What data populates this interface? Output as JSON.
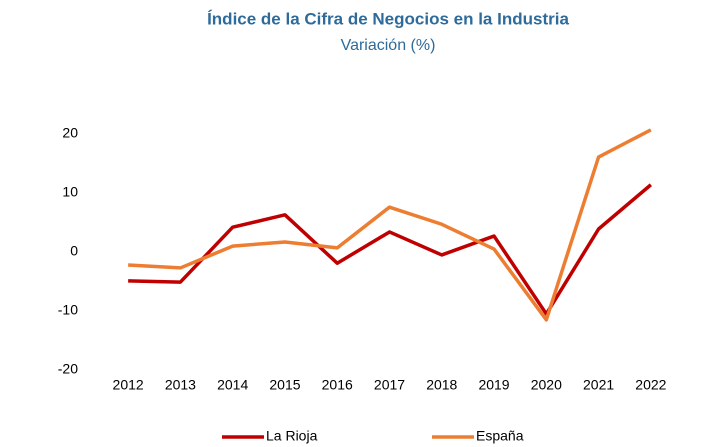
{
  "chart_data": {
    "type": "line",
    "title": "Índice de la Cifra de Negocios en la Industria",
    "subtitle": "Variación (%)",
    "categories": [
      "2012",
      "2013",
      "2014",
      "2015",
      "2016",
      "2017",
      "2018",
      "2019",
      "2020",
      "2021",
      "2022"
    ],
    "series": [
      {
        "name": "La Rioja",
        "color": "#c00000",
        "values": [
          -4.9,
          -5.1,
          4.2,
          6.3,
          -1.9,
          3.4,
          -0.5,
          2.7,
          -10.5,
          3.9,
          11.4
        ]
      },
      {
        "name": "España",
        "color": "#ed7d31",
        "values": [
          -2.2,
          -2.7,
          1.0,
          1.7,
          0.7,
          7.6,
          4.7,
          0.5,
          -11.5,
          16.1,
          20.7
        ]
      }
    ],
    "ylim": [
      -20,
      20
    ],
    "yticks": [
      -20,
      -10,
      0,
      10,
      20
    ],
    "grid": false,
    "legend": "bottom"
  }
}
